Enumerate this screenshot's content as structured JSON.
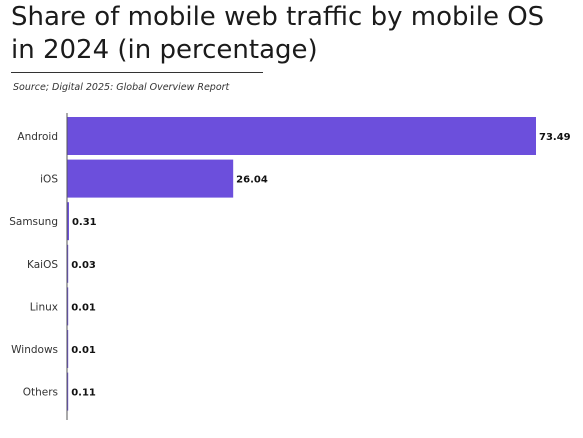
{
  "chart_data": {
    "type": "bar",
    "orientation": "horizontal",
    "title": "Share of mobile web traffic by mobile OS in 2024 (in percentage)",
    "source": "Source; Digital 2025: Global Overview Report",
    "categories": [
      "Android",
      "iOS",
      "Samsung",
      "KaiOS",
      "Linux",
      "Windows",
      "Others"
    ],
    "values": [
      73.49,
      26.04,
      0.31,
      0.03,
      0.01,
      0.01,
      0.11
    ],
    "value_labels": [
      "73.49",
      "26.04",
      "0.31",
      "0.03",
      "0.01",
      "0.01",
      "0.11"
    ],
    "xlim": [
      0,
      73.49
    ],
    "grid": false,
    "bar_color": "#6c4fdc",
    "axis_color": "#555555"
  }
}
